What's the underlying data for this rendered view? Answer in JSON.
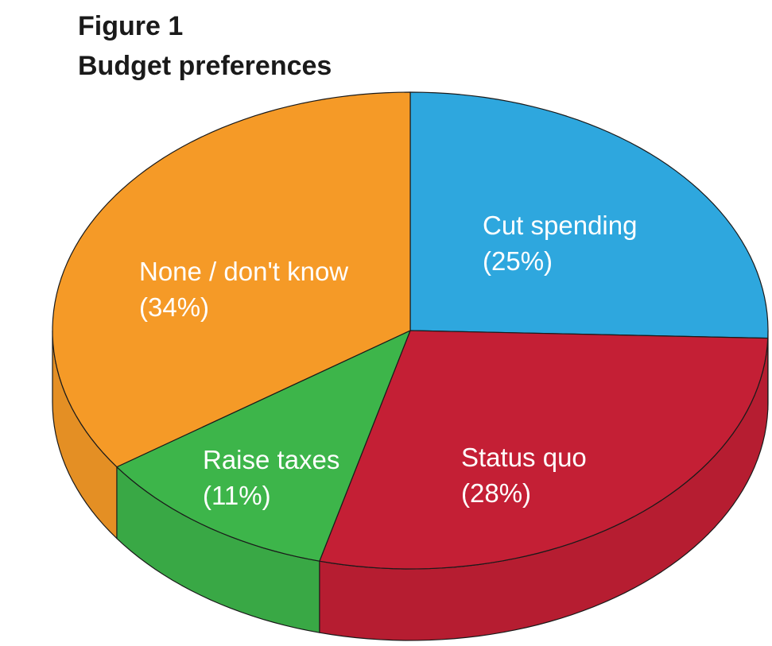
{
  "figure": {
    "label": "Figure 1",
    "title": "Budget preferences"
  },
  "chart_data": {
    "type": "pie",
    "style": "3d",
    "slices": [
      {
        "name": "Cut spending",
        "value": 25,
        "value_label": "(25%)",
        "color": "#2ea7de"
      },
      {
        "name": "Status quo",
        "value": 28,
        "value_label": "(28%)",
        "color": "#c41f35"
      },
      {
        "name": "Raise taxes",
        "value": 11,
        "value_label": "(11%)",
        "color": "#3db54a"
      },
      {
        "name": "None / don't know",
        "value": 34,
        "value_label": "(34%)",
        "color": "#f59a27"
      }
    ]
  }
}
